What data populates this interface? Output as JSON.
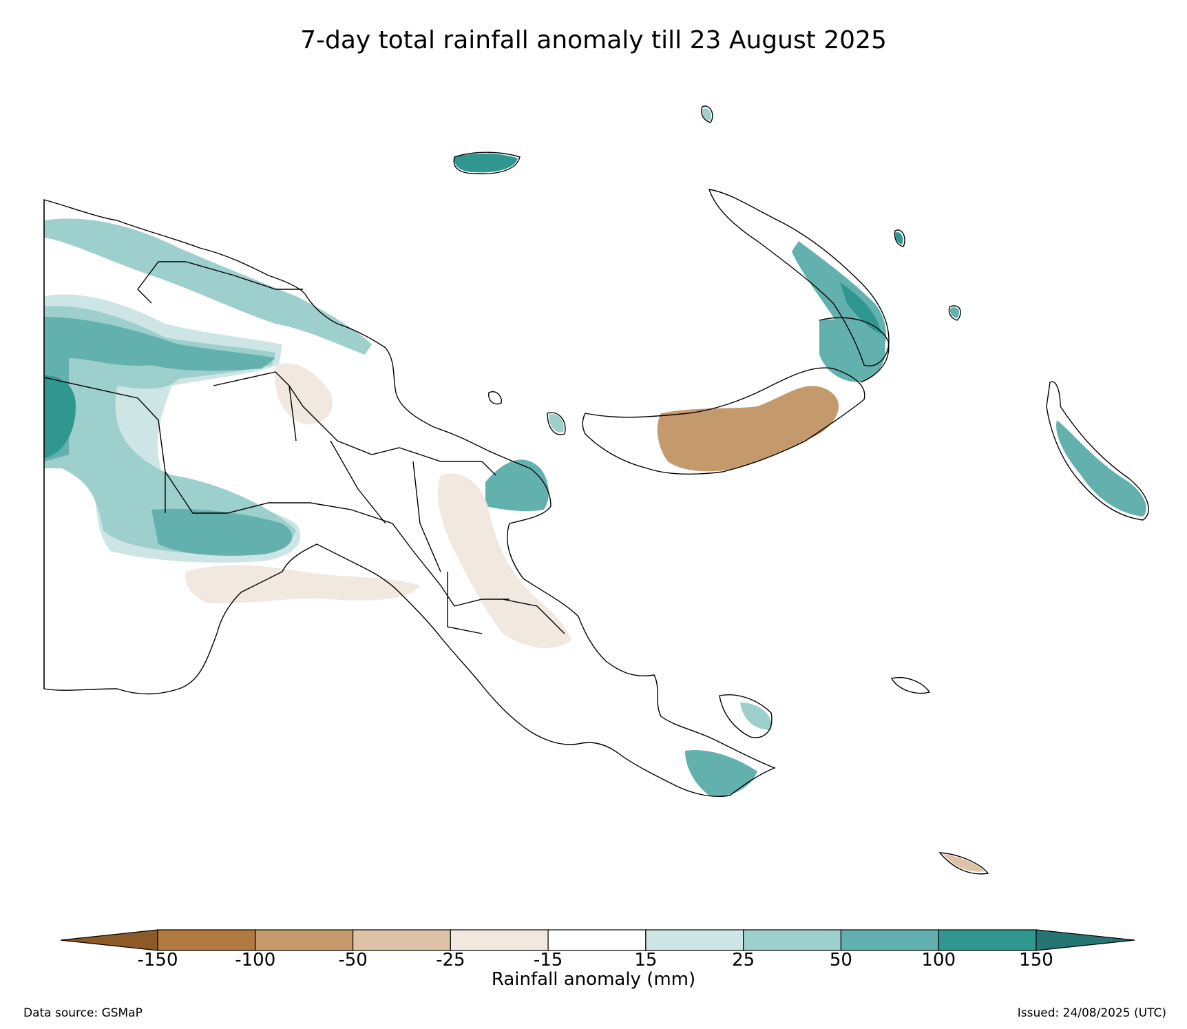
{
  "title": "7-day total rainfall anomaly till 23 August 2025",
  "colorbar": {
    "label": "Rainfall anomaly (mm)",
    "ticks": [
      "-150",
      "-100",
      "-50",
      "-25",
      "-15",
      "15",
      "25",
      "50",
      "100",
      "150"
    ],
    "colors": [
      "#8c5a26",
      "#b07a40",
      "#c49a6c",
      "#dcc3a8",
      "#f1e8df",
      "#ffffff",
      "#cde6e5",
      "#9dcfcd",
      "#62b1af",
      "#2f9690",
      "#257672"
    ],
    "extend": "both"
  },
  "footer": {
    "source": "Data source: GSMaP",
    "issued": "Issued: 24/08/2025 (UTC)"
  },
  "legend_colors": {
    "boundary": "#000000",
    "dry_strong": "#c49a6c",
    "dry_light": "#f1e8df",
    "wet_light": "#cde6e5",
    "wet_mid": "#9dcfcd",
    "wet_strong": "#62b1af",
    "wet_very_strong": "#2f9690"
  }
}
